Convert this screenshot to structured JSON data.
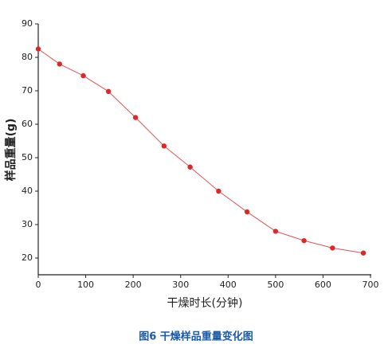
{
  "chart_data": {
    "type": "line",
    "x_label": "干燥时长(分钟)",
    "y_label": "样品重量(g)",
    "caption": "图6  干燥样品重量变化图",
    "x": [
      0,
      45,
      95,
      148,
      205,
      265,
      320,
      380,
      440,
      500,
      560,
      620,
      685
    ],
    "series": [
      {
        "color": "#e02626",
        "values": [
          82.5,
          78,
          74.5,
          69.8,
          62,
          53.5,
          47.2,
          40,
          33.8,
          28,
          25.2,
          23,
          21.5
        ]
      }
    ],
    "xlim": [
      0,
      700
    ],
    "xticks": [
      0,
      100,
      200,
      300,
      400,
      500,
      600,
      700
    ],
    "ylim": [
      15,
      90
    ],
    "yticks": [
      20,
      30,
      40,
      50,
      60,
      70,
      80,
      90
    ],
    "markers": true
  }
}
